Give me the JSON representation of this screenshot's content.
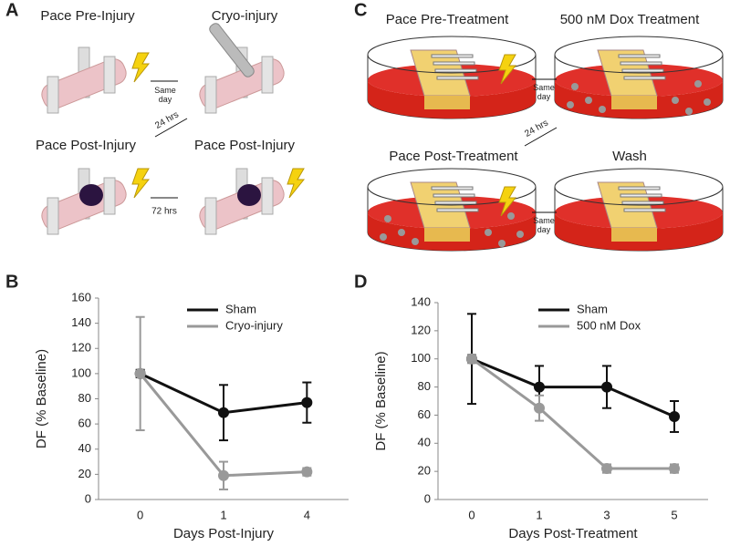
{
  "panel_labels": [
    "A",
    "B",
    "C",
    "D"
  ],
  "diagram_a": {
    "steps": [
      "Pace Pre-Injury",
      "Cryo-injury",
      "Pace Post-Injury",
      "Pace Post-Injury"
    ],
    "arrows": [
      "Same day",
      "24 hrs",
      "72 hrs"
    ]
  },
  "diagram_c": {
    "steps": [
      "Pace Pre-Treatment",
      "500 nM Dox Treatment",
      "Pace Post-Treatment",
      "Wash"
    ],
    "arrows": [
      "Same day",
      "24 hrs",
      "Same day"
    ]
  },
  "chart_data": [
    {
      "type": "line",
      "x_label": "Days Post-Injury",
      "y_label": "DF (% Baseline)",
      "categories": [
        "0",
        "1",
        "4"
      ],
      "ylim": [
        0,
        160
      ],
      "yticks": [
        0,
        20,
        40,
        60,
        80,
        100,
        120,
        140,
        160
      ],
      "series": [
        {
          "name": "Sham",
          "color": "#111111",
          "values": [
            100,
            69,
            77
          ],
          "errors": [
            3,
            22,
            16
          ]
        },
        {
          "name": "Cryo-injury",
          "color": "#999999",
          "values": [
            100,
            19,
            22
          ],
          "errors": [
            45,
            11,
            3
          ]
        }
      ]
    },
    {
      "type": "line",
      "x_label": "Days Post-Treatment",
      "y_label": "DF (% Baseline)",
      "categories": [
        "0",
        "1",
        "3",
        "5"
      ],
      "ylim": [
        0,
        140
      ],
      "yticks": [
        0,
        20,
        40,
        60,
        80,
        100,
        120,
        140
      ],
      "series": [
        {
          "name": "Sham",
          "color": "#111111",
          "values": [
            100,
            80,
            80,
            59
          ],
          "errors": [
            32,
            15,
            15,
            11
          ]
        },
        {
          "name": "500 nM Dox",
          "color": "#999999",
          "values": [
            100,
            65,
            22,
            22
          ],
          "errors": [
            3,
            9,
            3,
            3
          ]
        }
      ]
    }
  ]
}
